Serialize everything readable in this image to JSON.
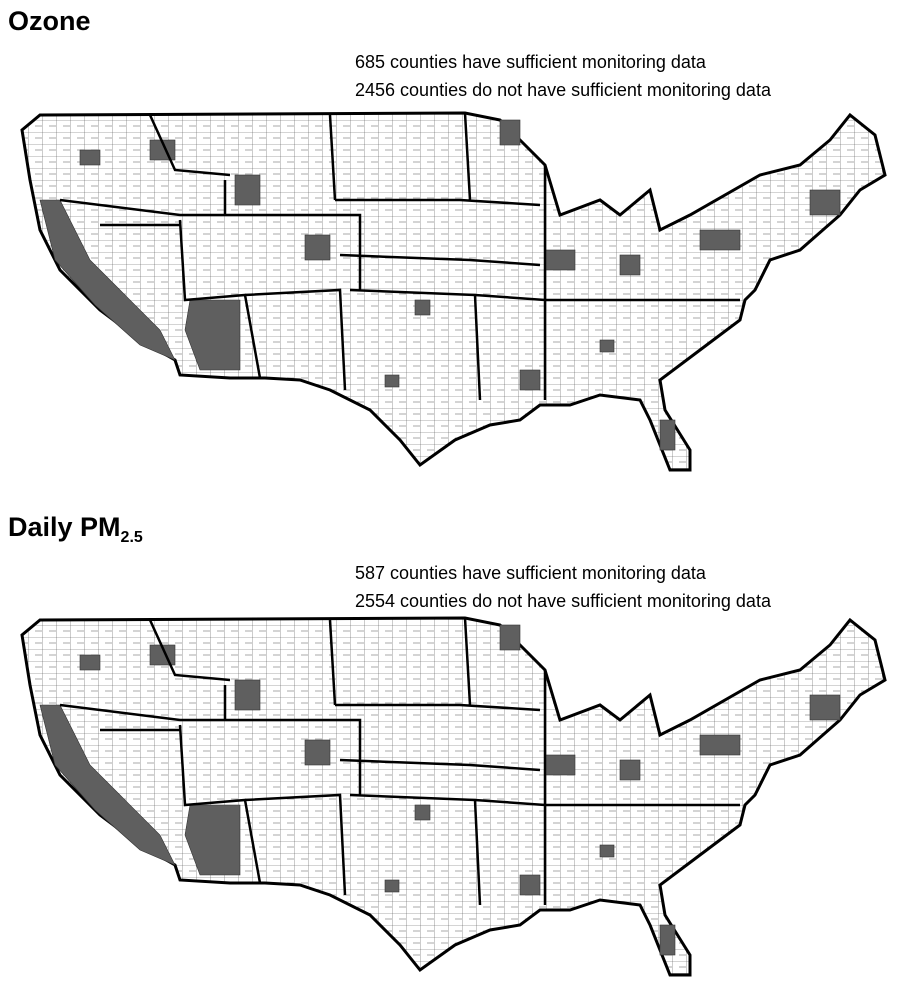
{
  "panels": [
    {
      "title": "Ozone",
      "legend": [
        "685 counties have sufficient monitoring data",
        "2456 counties do not have sufficient monitoring data"
      ]
    },
    {
      "title": "Daily PM",
      "title_subscript": "2.5",
      "legend": [
        "587 counties have sufficient monitoring data",
        "2554 counties do not have sufficient monitoring data"
      ]
    }
  ]
}
